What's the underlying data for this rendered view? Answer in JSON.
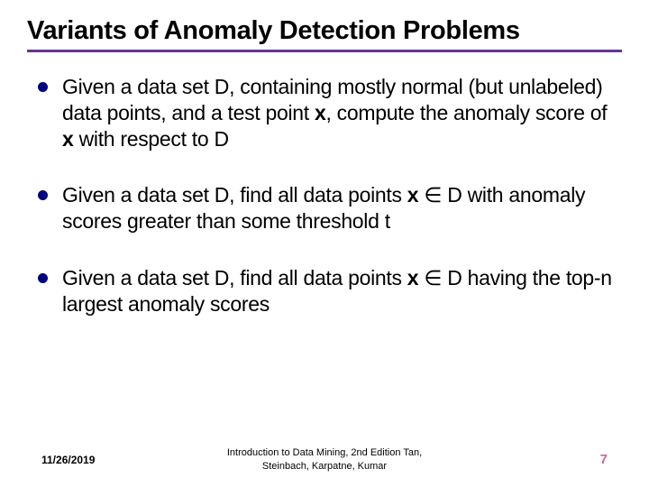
{
  "title": "Variants of Anomaly Detection Problems",
  "divider_color": "#663399",
  "bullet_color": "#000080",
  "bullets": [
    {
      "pre": "Given a data set D, containing mostly normal (but unlabeled) data points, and a test point ",
      "bold1": "x",
      "mid": ", compute the anomaly score of ",
      "bold2": "x",
      "post": " with respect to D"
    },
    {
      "pre": "Given a data set D, find all data points ",
      "bold1": "x",
      "mid": " ∈ D with anomaly scores greater than some threshold t",
      "bold2": "",
      "post": ""
    },
    {
      "pre": "Given a data set D, find all data points ",
      "bold1": "x",
      "mid": " ∈ D having the top-n largest anomaly scores",
      "bold2": "",
      "post": ""
    }
  ],
  "footer": {
    "date": "11/26/2019",
    "reference_line1": "Introduction to Data Mining, 2nd Edition   Tan,",
    "reference_line2": "Steinbach, Karpatne, Kumar",
    "page": "7",
    "page_color": "#cc6699"
  }
}
